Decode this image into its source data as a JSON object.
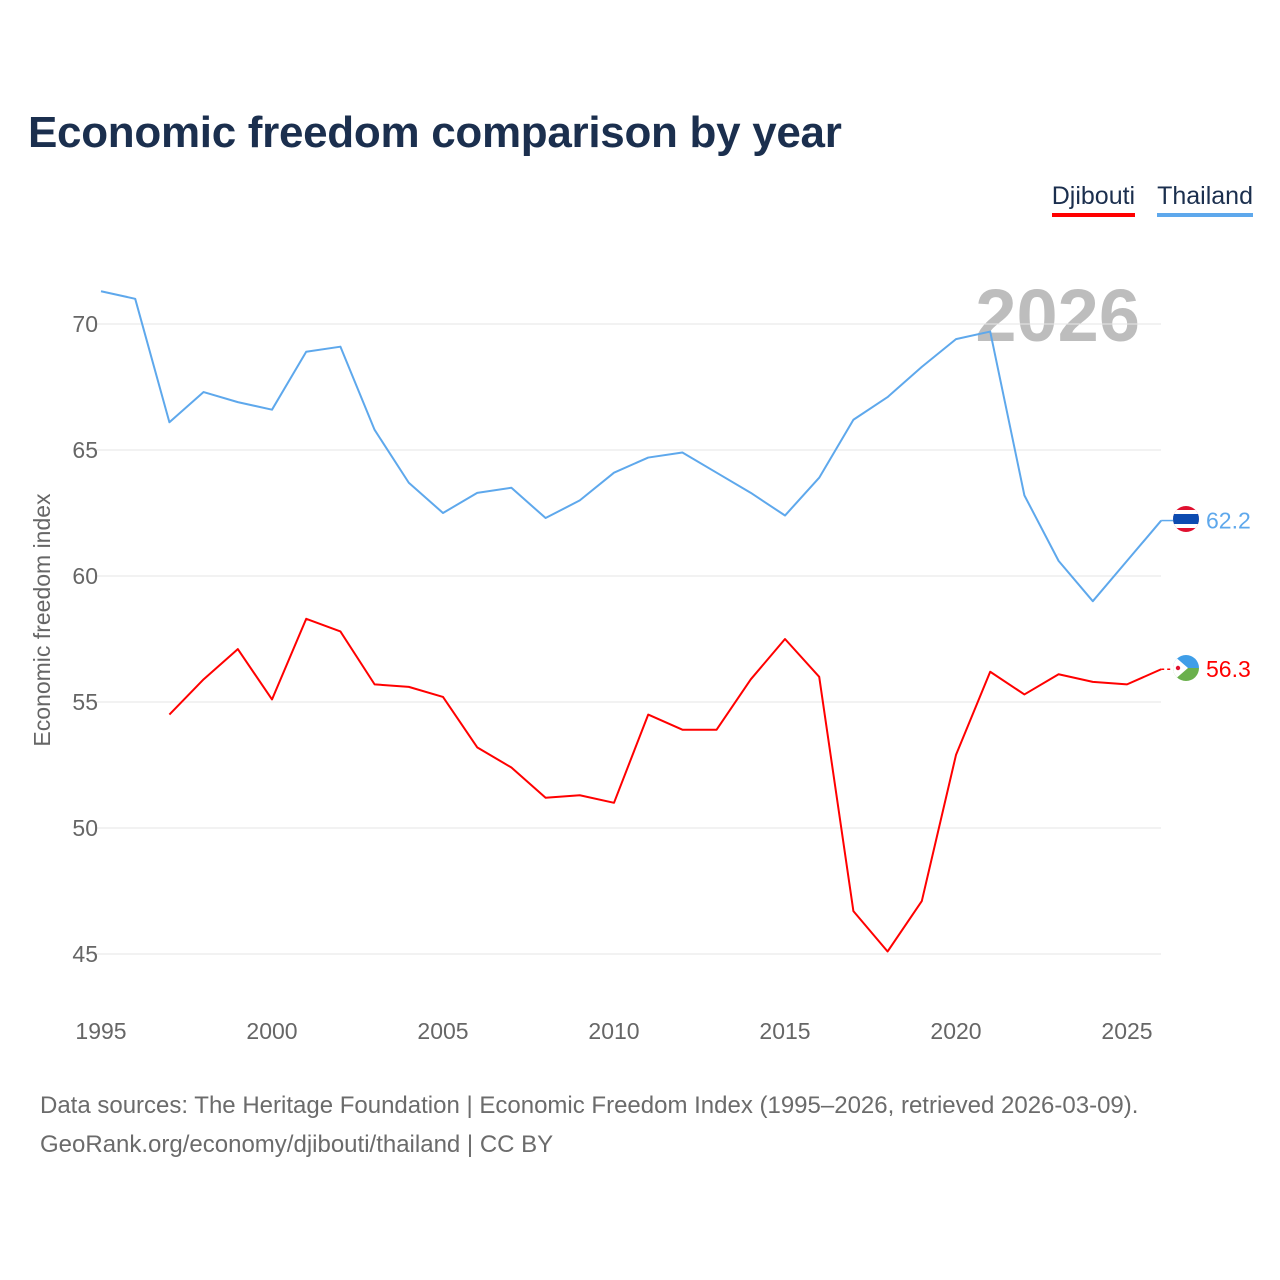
{
  "title": "Economic freedom comparison by year",
  "legend": [
    {
      "name": "Djibouti",
      "color": "#ff0000"
    },
    {
      "name": "Thailand",
      "color": "#5ea8ec"
    }
  ],
  "footer": {
    "line1": "Data sources: The Heritage Foundation | Economic Freedom Index (1995–2026, retrieved 2026-03-09).",
    "line2": "GeoRank.org/economy/djibouti/thailand | CC BY"
  },
  "chart_data": {
    "type": "line",
    "title": "Economic freedom comparison by year",
    "xlabel": "",
    "ylabel": "Economic freedom index",
    "watermark": "2026",
    "xlim": [
      1995,
      2026
    ],
    "ylim": [
      43.5,
      73.5
    ],
    "xticks": [
      "1995",
      "2000",
      "2005",
      "2010",
      "2015",
      "2020",
      "2025"
    ],
    "yticks": [
      "45",
      "50",
      "55",
      "60",
      "65",
      "70"
    ],
    "grid": true,
    "legend_position": "top-right",
    "series": [
      {
        "name": "Djibouti",
        "color": "#ff0000",
        "end_label": "56.3",
        "x": [
          1997,
          1998,
          1999,
          2000,
          2001,
          2002,
          2003,
          2004,
          2005,
          2006,
          2007,
          2008,
          2009,
          2010,
          2011,
          2012,
          2013,
          2014,
          2015,
          2016,
          2017,
          2018,
          2019,
          2020,
          2021,
          2022,
          2023,
          2024,
          2025,
          2026
        ],
        "values": [
          54.5,
          55.9,
          57.1,
          55.1,
          58.3,
          57.8,
          55.7,
          55.6,
          55.2,
          53.2,
          52.4,
          51.2,
          51.3,
          51.0,
          54.5,
          53.9,
          53.9,
          55.9,
          57.5,
          56.0,
          46.7,
          45.1,
          47.1,
          52.9,
          56.2,
          55.3,
          56.1,
          55.8,
          55.7,
          56.3
        ]
      },
      {
        "name": "Thailand",
        "color": "#5ea8ec",
        "end_label": "62.2",
        "x": [
          1995,
          1996,
          1997,
          1998,
          1999,
          2000,
          2001,
          2002,
          2003,
          2004,
          2005,
          2006,
          2007,
          2008,
          2009,
          2010,
          2011,
          2012,
          2013,
          2014,
          2015,
          2016,
          2017,
          2018,
          2019,
          2020,
          2021,
          2022,
          2023,
          2024,
          2025,
          2026
        ],
        "values": [
          71.3,
          71.0,
          66.1,
          67.3,
          66.9,
          66.6,
          68.9,
          69.1,
          65.8,
          63.7,
          62.5,
          63.3,
          63.5,
          62.3,
          63.0,
          64.1,
          64.7,
          64.9,
          64.1,
          63.3,
          62.4,
          63.9,
          66.2,
          67.1,
          68.3,
          69.4,
          69.7,
          63.2,
          60.6,
          59.0,
          60.6,
          62.2
        ]
      }
    ]
  }
}
